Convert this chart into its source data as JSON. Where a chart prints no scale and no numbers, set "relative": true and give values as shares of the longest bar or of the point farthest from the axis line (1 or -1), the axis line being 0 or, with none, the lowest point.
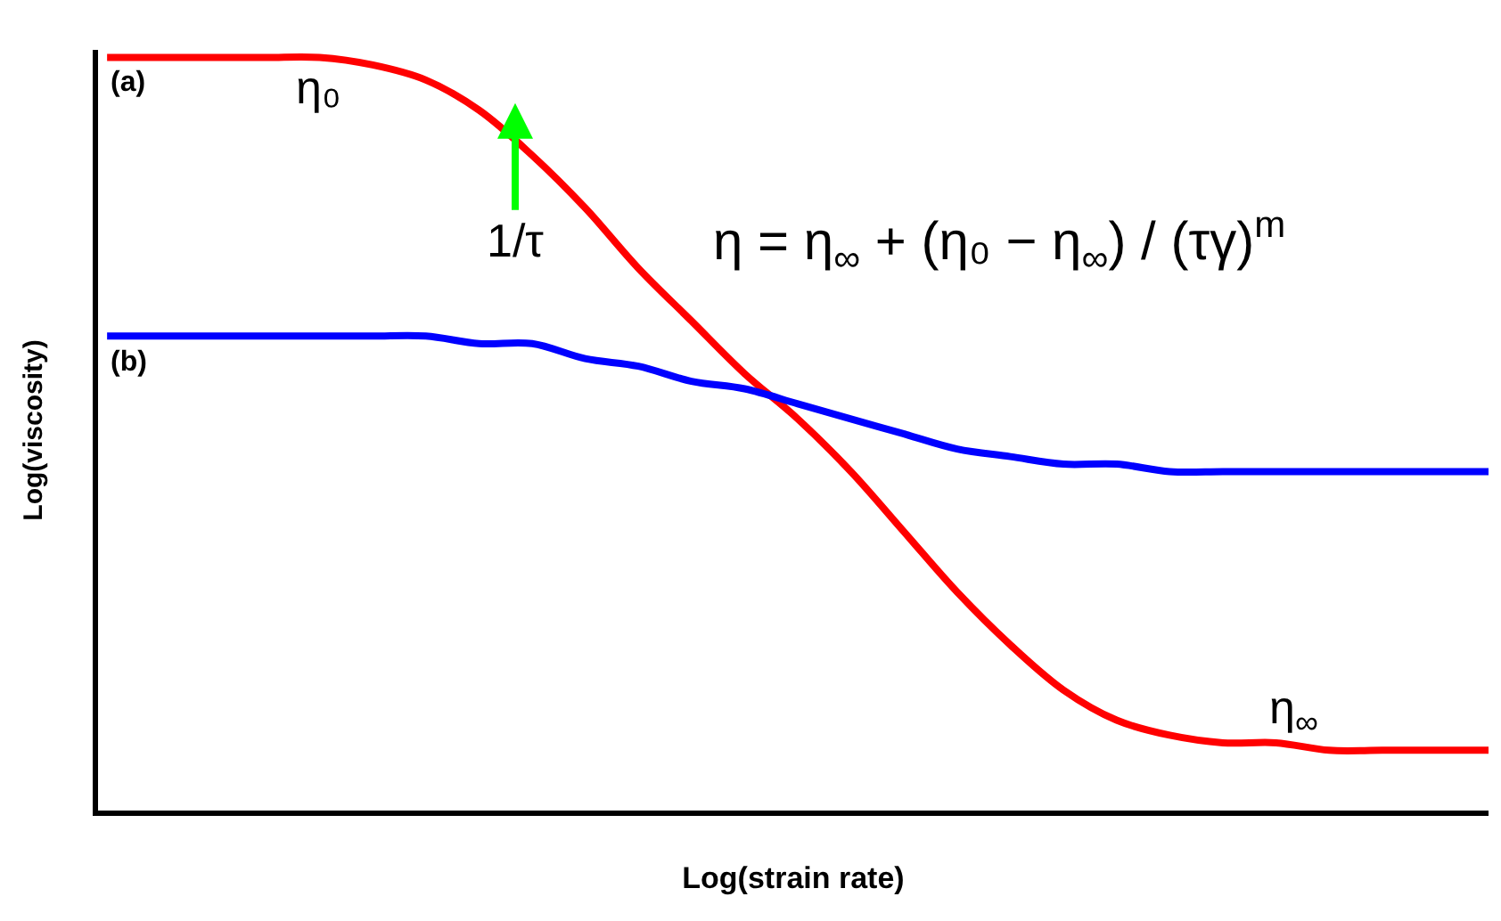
{
  "chart_data": {
    "type": "line",
    "relative": true,
    "xlabel": "Log(strain rate)",
    "ylabel": "Log(viscosity)",
    "categories": [
      null,
      null,
      null,
      null,
      null,
      null,
      null,
      null,
      null,
      null,
      null,
      null,
      null,
      null,
      null,
      null,
      null,
      null,
      null,
      null,
      null,
      null,
      null,
      null,
      null,
      null,
      null
    ],
    "series": [
      {
        "name": "(a)",
        "color": "#ff0000",
        "values": [
          1.0,
          1.0,
          1.0,
          1.0,
          1.0,
          0.99,
          0.97,
          0.93,
          0.87,
          0.8,
          0.72,
          0.65,
          0.58,
          0.52,
          0.45,
          0.37,
          0.29,
          0.22,
          0.16,
          0.12,
          0.1,
          0.09,
          0.09,
          0.08,
          0.08,
          0.08,
          0.08
        ]
      },
      {
        "name": "(b)",
        "color": "#0000ff",
        "values": [
          0.63,
          0.63,
          0.63,
          0.63,
          0.63,
          0.63,
          0.63,
          0.62,
          0.62,
          0.6,
          0.59,
          0.57,
          0.56,
          0.54,
          0.52,
          0.5,
          0.48,
          0.47,
          0.46,
          0.46,
          0.45,
          0.45,
          0.45,
          0.45,
          0.45,
          0.45,
          0.45
        ]
      }
    ],
    "annotations": [
      "η₀",
      "η$_{∞}$",
      "1/τ",
      "η = η$_{∞}$ + (η₀ − η$_{∞}$) / (τγ)$^{m}$"
    ],
    "legend": false,
    "marker": "none",
    "line_style": "solid",
    "tick_labels": false
  }
}
